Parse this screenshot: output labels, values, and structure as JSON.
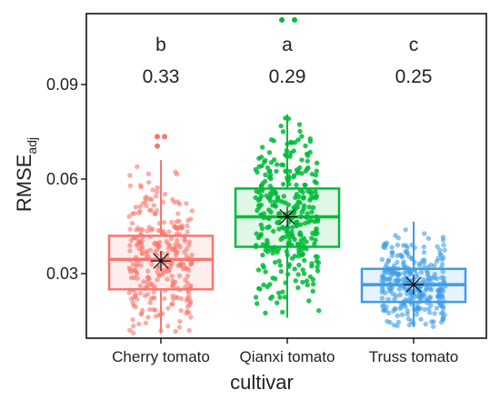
{
  "chart_data": {
    "type": "boxplot",
    "title": "",
    "xlabel": "cultivar",
    "ylabel": "RMSE",
    "ylabel_subscript": "adj",
    "y_ticks": [
      0.03,
      0.06,
      0.09
    ],
    "y_tick_labels": [
      "0.03",
      "0.06",
      "0.09"
    ],
    "ylim": [
      0.0095,
      0.1125
    ],
    "grid": false,
    "legend": "none",
    "categories": [
      "Cherry tomato",
      "Qianxi tomato",
      "Truss tomato"
    ],
    "letters": [
      "b",
      "a",
      "c"
    ],
    "annotations": [
      "0.33",
      "0.29",
      "0.25"
    ],
    "colors": [
      "#f8766d",
      "#00ba38",
      "#3d9ce8"
    ],
    "boxes": [
      {
        "category": "Cherry tomato",
        "min": 0.011,
        "q1": 0.025,
        "median": 0.0345,
        "q3": 0.042,
        "max": 0.066,
        "mean": 0.034,
        "outliers": [
          0.0705,
          0.0735,
          0.0735
        ]
      },
      {
        "category": "Qianxi tomato",
        "min": 0.016,
        "q1": 0.0385,
        "median": 0.048,
        "q3": 0.057,
        "max": 0.0805,
        "mean": 0.048,
        "outliers": [
          0.1105,
          0.1105
        ]
      },
      {
        "category": "Truss tomato",
        "min": 0.013,
        "q1": 0.021,
        "median": 0.0265,
        "q3": 0.0315,
        "max": 0.0465,
        "mean": 0.0265,
        "outliers": []
      }
    ]
  }
}
